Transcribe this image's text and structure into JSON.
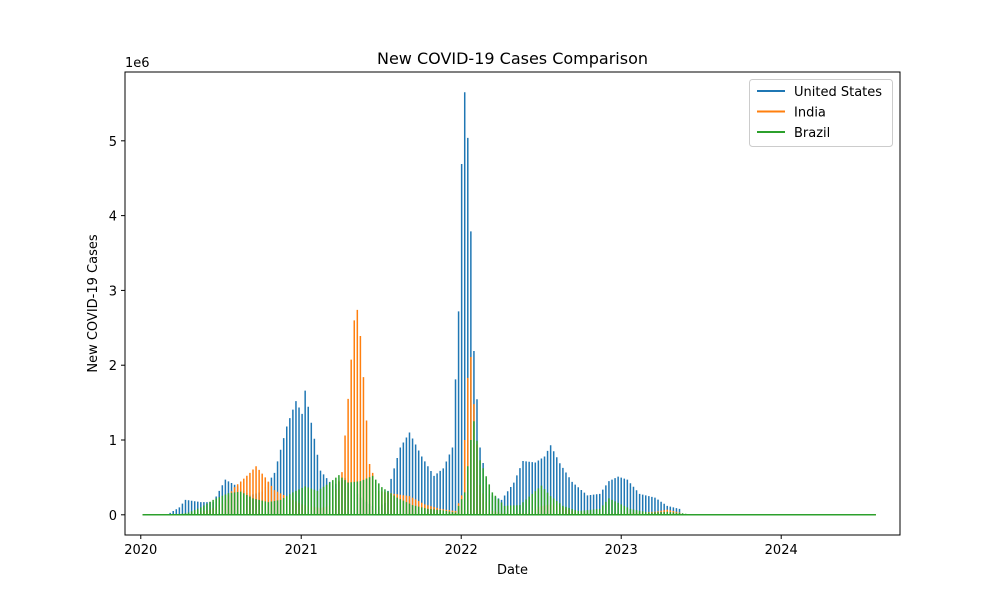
{
  "chart_data": {
    "type": "line",
    "title": "New COVID-19 Cases Comparison",
    "xlabel": "Date",
    "ylabel": "New COVID-19 Cases",
    "y_offset_text": "1e6",
    "xlim": [
      "2019-11-26",
      "2024-09-28"
    ],
    "ylim": [
      -270000,
      5920000
    ],
    "x_ticks": [
      {
        "value": "2020-01-01",
        "label": "2020"
      },
      {
        "value": "2021-01-01",
        "label": "2021"
      },
      {
        "value": "2022-01-01",
        "label": "2022"
      },
      {
        "value": "2023-01-01",
        "label": "2023"
      },
      {
        "value": "2024-01-01",
        "label": "2024"
      }
    ],
    "y_ticks": [
      {
        "value": 0,
        "label": "0"
      },
      {
        "value": 1000000,
        "label": "1"
      },
      {
        "value": 2000000,
        "label": "2"
      },
      {
        "value": 3000000,
        "label": "3"
      },
      {
        "value": 4000000,
        "label": "4"
      },
      {
        "value": 5000000,
        "label": "5"
      }
    ],
    "grid": false,
    "legend_position": "top-right",
    "drawing": "values are weekly totals, shown as spikes from 0 to each weekly value",
    "series": [
      {
        "name": "United States",
        "color": "#1f77b4",
        "points": [
          [
            "2020-01-05",
            0
          ],
          [
            "2020-03-01",
            0
          ],
          [
            "2020-03-29",
            100000
          ],
          [
            "2020-04-12",
            200000
          ],
          [
            "2020-05-17",
            170000
          ],
          [
            "2020-06-14",
            170000
          ],
          [
            "2020-07-12",
            470000
          ],
          [
            "2020-08-09",
            380000
          ],
          [
            "2020-09-06",
            260000
          ],
          [
            "2020-10-04",
            310000
          ],
          [
            "2020-11-01",
            560000
          ],
          [
            "2020-11-29",
            1180000
          ],
          [
            "2020-12-20",
            1520000
          ],
          [
            "2021-01-03",
            1350000
          ],
          [
            "2021-01-10",
            1660000
          ],
          [
            "2021-01-24",
            1230000
          ],
          [
            "2021-02-14",
            590000
          ],
          [
            "2021-03-14",
            390000
          ],
          [
            "2021-04-11",
            490000
          ],
          [
            "2021-05-16",
            230000
          ],
          [
            "2021-06-20",
            90000
          ],
          [
            "2021-07-11",
            160000
          ],
          [
            "2021-07-25",
            480000
          ],
          [
            "2021-08-15",
            900000
          ],
          [
            "2021-09-05",
            1100000
          ],
          [
            "2021-10-03",
            780000
          ],
          [
            "2021-10-31",
            520000
          ],
          [
            "2021-11-21",
            620000
          ],
          [
            "2021-12-12",
            900000
          ],
          [
            "2021-12-26",
            2720000
          ],
          [
            "2022-01-02",
            4690000
          ],
          [
            "2022-01-09",
            5650000
          ],
          [
            "2022-01-16",
            5040000
          ],
          [
            "2022-01-23",
            3790000
          ],
          [
            "2022-01-30",
            2190000
          ],
          [
            "2022-02-13",
            900000
          ],
          [
            "2022-03-06",
            280000
          ],
          [
            "2022-04-03",
            200000
          ],
          [
            "2022-05-01",
            430000
          ],
          [
            "2022-05-22",
            720000
          ],
          [
            "2022-06-19",
            700000
          ],
          [
            "2022-07-10",
            780000
          ],
          [
            "2022-07-24",
            930000
          ],
          [
            "2022-08-14",
            690000
          ],
          [
            "2022-09-11",
            440000
          ],
          [
            "2022-10-16",
            260000
          ],
          [
            "2022-11-13",
            280000
          ],
          [
            "2022-12-04",
            450000
          ],
          [
            "2022-12-25",
            510000
          ],
          [
            "2023-01-15",
            470000
          ],
          [
            "2023-02-12",
            280000
          ],
          [
            "2023-03-19",
            230000
          ],
          [
            "2023-04-16",
            120000
          ],
          [
            "2023-05-14",
            80000
          ],
          [
            "2023-05-21",
            0
          ],
          [
            "2024-08-04",
            0
          ]
        ]
      },
      {
        "name": "India",
        "color": "#ff7f0e",
        "points": [
          [
            "2020-01-05",
            0
          ],
          [
            "2020-04-05",
            0
          ],
          [
            "2020-05-03",
            20000
          ],
          [
            "2020-06-07",
            70000
          ],
          [
            "2020-07-05",
            150000
          ],
          [
            "2020-08-02",
            370000
          ],
          [
            "2020-09-06",
            560000
          ],
          [
            "2020-09-20",
            650000
          ],
          [
            "2020-10-11",
            500000
          ],
          [
            "2020-11-01",
            330000
          ],
          [
            "2020-12-06",
            220000
          ],
          [
            "2021-01-03",
            140000
          ],
          [
            "2021-02-14",
            90000
          ],
          [
            "2021-03-07",
            120000
          ],
          [
            "2021-04-04",
            570000
          ],
          [
            "2021-04-18",
            1550000
          ],
          [
            "2021-05-02",
            2600000
          ],
          [
            "2021-05-09",
            2740000
          ],
          [
            "2021-05-16",
            2390000
          ],
          [
            "2021-05-23",
            1840000
          ],
          [
            "2021-06-06",
            680000
          ],
          [
            "2021-06-27",
            320000
          ],
          [
            "2021-08-01",
            280000
          ],
          [
            "2021-09-05",
            250000
          ],
          [
            "2021-10-10",
            140000
          ],
          [
            "2021-11-14",
            80000
          ],
          [
            "2021-12-19",
            50000
          ],
          [
            "2022-01-02",
            260000
          ],
          [
            "2022-01-09",
            1000000
          ],
          [
            "2022-01-16",
            1830000
          ],
          [
            "2022-01-23",
            2110000
          ],
          [
            "2022-01-30",
            1480000
          ],
          [
            "2022-02-13",
            400000
          ],
          [
            "2022-03-06",
            60000
          ],
          [
            "2022-04-03",
            20000
          ],
          [
            "2022-06-05",
            20000
          ],
          [
            "2022-06-26",
            110000
          ],
          [
            "2022-07-24",
            140000
          ],
          [
            "2022-08-14",
            110000
          ],
          [
            "2022-09-18",
            40000
          ],
          [
            "2022-11-06",
            10000
          ],
          [
            "2023-03-19",
            40000
          ],
          [
            "2023-04-16",
            70000
          ],
          [
            "2023-05-14",
            30000
          ],
          [
            "2023-05-21",
            0
          ],
          [
            "2024-08-04",
            0
          ]
        ]
      },
      {
        "name": "Brazil",
        "color": "#2ca02c",
        "points": [
          [
            "2020-01-05",
            0
          ],
          [
            "2020-03-22",
            0
          ],
          [
            "2020-04-19",
            30000
          ],
          [
            "2020-05-17",
            100000
          ],
          [
            "2020-06-14",
            200000
          ],
          [
            "2020-07-19",
            290000
          ],
          [
            "2020-08-16",
            310000
          ],
          [
            "2020-09-13",
            220000
          ],
          [
            "2020-10-18",
            170000
          ],
          [
            "2020-11-15",
            200000
          ],
          [
            "2020-12-13",
            300000
          ],
          [
            "2021-01-10",
            380000
          ],
          [
            "2021-02-07",
            320000
          ],
          [
            "2021-03-07",
            430000
          ],
          [
            "2021-03-28",
            530000
          ],
          [
            "2021-04-18",
            430000
          ],
          [
            "2021-05-16",
            450000
          ],
          [
            "2021-06-13",
            520000
          ],
          [
            "2021-07-04",
            370000
          ],
          [
            "2021-08-08",
            230000
          ],
          [
            "2021-09-12",
            130000
          ],
          [
            "2021-10-17",
            80000
          ],
          [
            "2021-11-21",
            60000
          ],
          [
            "2021-12-19",
            30000
          ],
          [
            "2022-01-09",
            300000
          ],
          [
            "2022-01-23",
            1000000
          ],
          [
            "2022-01-30",
            1250000
          ],
          [
            "2022-02-13",
            730000
          ],
          [
            "2022-03-13",
            300000
          ],
          [
            "2022-04-10",
            120000
          ],
          [
            "2022-05-15",
            130000
          ],
          [
            "2022-06-12",
            280000
          ],
          [
            "2022-07-03",
            390000
          ],
          [
            "2022-07-24",
            250000
          ],
          [
            "2022-08-21",
            120000
          ],
          [
            "2022-09-25",
            50000
          ],
          [
            "2022-11-13",
            80000
          ],
          [
            "2022-12-04",
            220000
          ],
          [
            "2022-12-25",
            160000
          ],
          [
            "2023-01-22",
            80000
          ],
          [
            "2023-03-05",
            30000
          ],
          [
            "2023-04-16",
            40000
          ],
          [
            "2023-05-21",
            20000
          ],
          [
            "2023-06-11",
            0
          ],
          [
            "2024-08-04",
            0
          ]
        ]
      }
    ]
  }
}
